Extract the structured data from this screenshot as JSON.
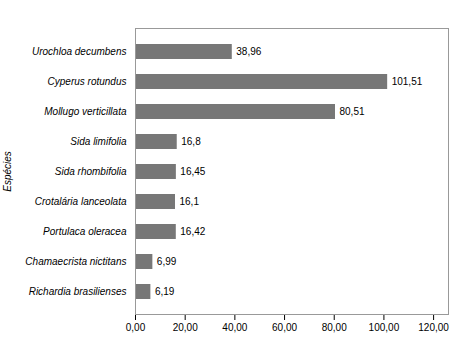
{
  "chart_data": {
    "type": "bar",
    "orientation": "horizontal",
    "ylabel": "Espécies",
    "categories": [
      "Urochloa decumbens",
      "Cyperus rotundus",
      "Mollugo verticillata",
      "Sida limifolia",
      "Sida rhombifolia",
      "Crotalária lanceolata",
      "Portulaca oleracea",
      "Chamaecrista nictitans",
      "Richardia brasilienses"
    ],
    "values": [
      38.96,
      101.51,
      80.51,
      16.8,
      16.45,
      16.1,
      16.42,
      6.99,
      6.19
    ],
    "value_labels": [
      "38,96",
      "101,51",
      "80,51",
      "16,8",
      "16,45",
      "16,1",
      "16,42",
      "6,99",
      "6,19"
    ],
    "data_labels": true,
    "color": "#777777",
    "xlim": [
      0,
      126
    ],
    "xticks": [
      {
        "value": 0,
        "label": "0,00"
      },
      {
        "value": 20,
        "label": "20,00"
      },
      {
        "value": 40,
        "label": "40,00"
      },
      {
        "value": 60,
        "label": "60,00"
      },
      {
        "value": 80,
        "label": "80,00"
      },
      {
        "value": 100,
        "label": "100,00"
      },
      {
        "value": 120,
        "label": "120,00"
      }
    ],
    "grid": false
  }
}
